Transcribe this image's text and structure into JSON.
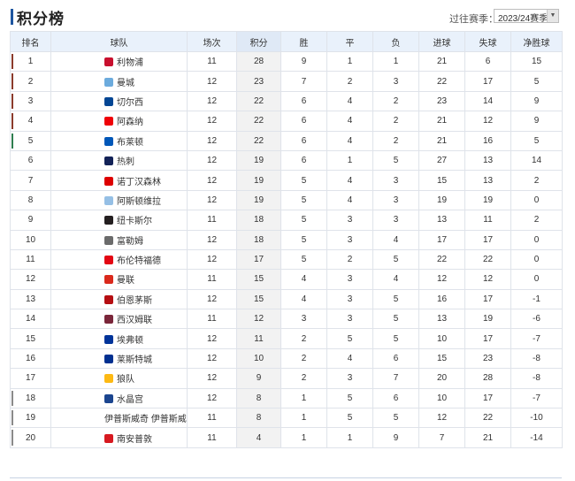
{
  "page": {
    "title": "积分榜"
  },
  "season": {
    "label": "过往赛季：",
    "selected": "2023/24赛季"
  },
  "table": {
    "headers": [
      "排名",
      "球队",
      "场次",
      "积分",
      "胜",
      "平",
      "负",
      "进球",
      "失球",
      "净胜球"
    ],
    "zone_colors": {
      "ucl": "#8b3a2b",
      "uel": "#2e7d4f",
      "uecl": "#4f8fd6",
      "relegation": "#8a8a8a"
    },
    "rows": [
      {
        "rank": "1",
        "team": "利物浦",
        "played": "11",
        "points": "28",
        "w": "9",
        "d": "1",
        "l": "1",
        "gf": "21",
        "ga": "6",
        "gd": "15",
        "zone": "ucl",
        "logo_color": "#c8102e",
        "icon": "liverpool-crest-icon"
      },
      {
        "rank": "2",
        "team": "曼城",
        "played": "12",
        "points": "23",
        "w": "7",
        "d": "2",
        "l": "3",
        "gf": "22",
        "ga": "17",
        "gd": "5",
        "zone": "ucl",
        "logo_color": "#6cabdd",
        "icon": "man-city-crest-icon"
      },
      {
        "rank": "3",
        "team": "切尔西",
        "played": "12",
        "points": "22",
        "w": "6",
        "d": "4",
        "l": "2",
        "gf": "23",
        "ga": "14",
        "gd": "9",
        "zone": "ucl",
        "logo_color": "#034694",
        "icon": "chelsea-crest-icon"
      },
      {
        "rank": "4",
        "team": "阿森纳",
        "played": "12",
        "points": "22",
        "w": "6",
        "d": "4",
        "l": "2",
        "gf": "21",
        "ga": "12",
        "gd": "9",
        "zone": "ucl",
        "logo_color": "#ef0107",
        "icon": "arsenal-crest-icon"
      },
      {
        "rank": "5",
        "team": "布莱顿",
        "played": "12",
        "points": "22",
        "w": "6",
        "d": "4",
        "l": "2",
        "gf": "21",
        "ga": "16",
        "gd": "5",
        "zone": "uel",
        "logo_color": "#0057b8",
        "icon": "brighton-crest-icon"
      },
      {
        "rank": "6",
        "team": "热刺",
        "played": "12",
        "points": "19",
        "w": "6",
        "d": "1",
        "l": "5",
        "gf": "27",
        "ga": "13",
        "gd": "14",
        "zone": "",
        "logo_color": "#132257",
        "icon": "tottenham-crest-icon"
      },
      {
        "rank": "7",
        "team": "诺丁汉森林",
        "played": "12",
        "points": "19",
        "w": "5",
        "d": "4",
        "l": "3",
        "gf": "15",
        "ga": "13",
        "gd": "2",
        "zone": "",
        "logo_color": "#dd0000",
        "icon": "nottingham-forest-crest-icon"
      },
      {
        "rank": "8",
        "team": "阿斯顿维拉",
        "played": "12",
        "points": "19",
        "w": "5",
        "d": "4",
        "l": "3",
        "gf": "19",
        "ga": "19",
        "gd": "0",
        "zone": "",
        "logo_color": "#95bfe5",
        "icon": "aston-villa-crest-icon"
      },
      {
        "rank": "9",
        "team": "纽卡斯尔",
        "played": "11",
        "points": "18",
        "w": "5",
        "d": "3",
        "l": "3",
        "gf": "13",
        "ga": "11",
        "gd": "2",
        "zone": "",
        "logo_color": "#241f20",
        "icon": "newcastle-crest-icon"
      },
      {
        "rank": "10",
        "team": "富勒姆",
        "played": "12",
        "points": "18",
        "w": "5",
        "d": "3",
        "l": "4",
        "gf": "17",
        "ga": "17",
        "gd": "0",
        "zone": "",
        "logo_color": "#6b6b6b",
        "icon": "fulham-crest-icon"
      },
      {
        "rank": "11",
        "team": "布伦特福德",
        "played": "12",
        "points": "17",
        "w": "5",
        "d": "2",
        "l": "5",
        "gf": "22",
        "ga": "22",
        "gd": "0",
        "zone": "",
        "logo_color": "#e30613",
        "icon": "brentford-crest-icon"
      },
      {
        "rank": "12",
        "team": "曼联",
        "played": "11",
        "points": "15",
        "w": "4",
        "d": "3",
        "l": "4",
        "gf": "12",
        "ga": "12",
        "gd": "0",
        "zone": "",
        "logo_color": "#da291c",
        "icon": "man-united-crest-icon"
      },
      {
        "rank": "13",
        "team": "伯恩茅斯",
        "played": "12",
        "points": "15",
        "w": "4",
        "d": "3",
        "l": "5",
        "gf": "16",
        "ga": "17",
        "gd": "-1",
        "zone": "",
        "logo_color": "#b50e12",
        "icon": "bournemouth-crest-icon"
      },
      {
        "rank": "14",
        "team": "西汉姆联",
        "played": "11",
        "points": "12",
        "w": "3",
        "d": "3",
        "l": "5",
        "gf": "13",
        "ga": "19",
        "gd": "-6",
        "zone": "",
        "logo_color": "#7a263a",
        "icon": "west-ham-crest-icon"
      },
      {
        "rank": "15",
        "team": "埃弗顿",
        "played": "12",
        "points": "11",
        "w": "2",
        "d": "5",
        "l": "5",
        "gf": "10",
        "ga": "17",
        "gd": "-7",
        "zone": "",
        "logo_color": "#003399",
        "icon": "everton-crest-icon"
      },
      {
        "rank": "16",
        "team": "莱斯特城",
        "played": "12",
        "points": "10",
        "w": "2",
        "d": "4",
        "l": "6",
        "gf": "15",
        "ga": "23",
        "gd": "-8",
        "zone": "",
        "logo_color": "#003090",
        "icon": "leicester-crest-icon"
      },
      {
        "rank": "17",
        "team": "狼队",
        "played": "12",
        "points": "9",
        "w": "2",
        "d": "3",
        "l": "7",
        "gf": "20",
        "ga": "28",
        "gd": "-8",
        "zone": "",
        "logo_color": "#fdb913",
        "icon": "wolves-crest-icon"
      },
      {
        "rank": "18",
        "team": "水晶宫",
        "played": "12",
        "points": "8",
        "w": "1",
        "d": "5",
        "l": "6",
        "gf": "10",
        "ga": "17",
        "gd": "-7",
        "zone": "relegation",
        "logo_color": "#1b458f",
        "icon": "crystal-palace-crest-icon"
      },
      {
        "rank": "19",
        "team": "伊普斯威奇 伊普斯威奇",
        "played": "11",
        "points": "8",
        "w": "1",
        "d": "5",
        "l": "5",
        "gf": "12",
        "ga": "22",
        "gd": "-10",
        "zone": "relegation",
        "logo_color": "",
        "icon": ""
      },
      {
        "rank": "20",
        "team": "南安普敦",
        "played": "11",
        "points": "4",
        "w": "1",
        "d": "1",
        "l": "9",
        "gf": "7",
        "ga": "21",
        "gd": "-14",
        "zone": "relegation",
        "logo_color": "#d71920",
        "icon": "southampton-crest-icon"
      }
    ]
  }
}
